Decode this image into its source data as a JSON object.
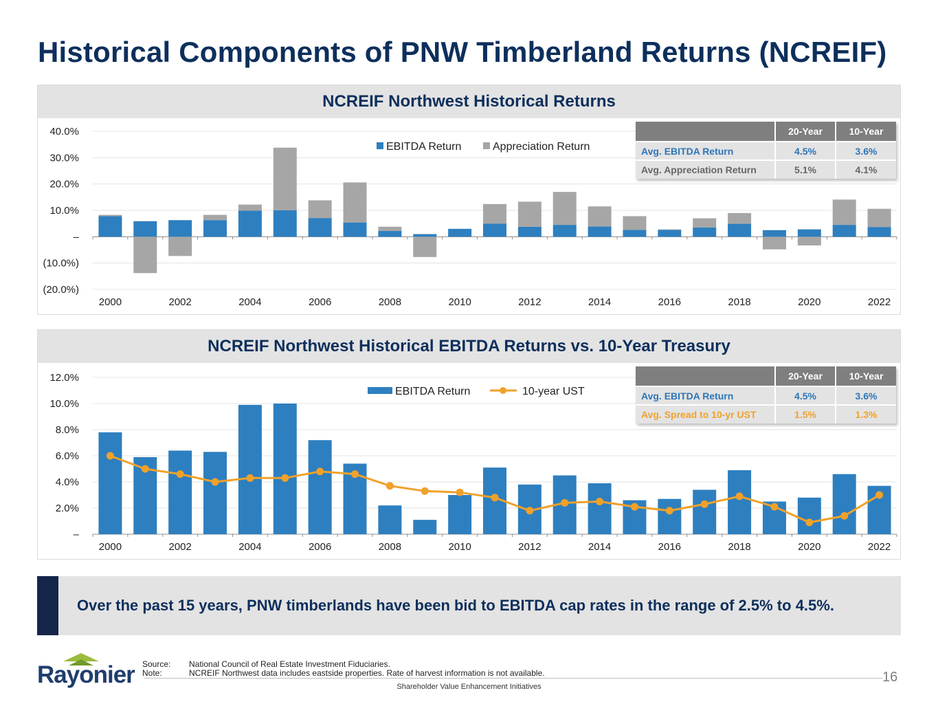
{
  "title": "Historical Components of PNW Timberland Returns (NCREIF)",
  "colors": {
    "navy": "#0d2f5c",
    "ebitda": "#2e7fbf",
    "appreciation": "#a6a6a6",
    "ust": "#f0a12a",
    "blue_text": "#2e75b6",
    "orange_text": "#f0a12a"
  },
  "panel1": {
    "title": "NCREIF Northwest Historical Returns",
    "table": {
      "headers": [
        "20-Year",
        "10-Year"
      ],
      "rows": [
        {
          "label": "Avg. EBITDA Return",
          "v20": "4.5%",
          "v10": "3.6%"
        },
        {
          "label": "Avg. Appreciation Return",
          "v20": "5.1%",
          "v10": "4.1%"
        }
      ]
    }
  },
  "panel2": {
    "title": "NCREIF Northwest Historical EBITDA Returns vs. 10-Year Treasury",
    "table": {
      "headers": [
        "20-Year",
        "10-Year"
      ],
      "rows": [
        {
          "label": "Avg. EBITDA Return",
          "v20": "4.5%",
          "v10": "3.6%"
        },
        {
          "label": "Avg. Spread to 10-yr UST",
          "v20": "1.5%",
          "v10": "1.3%"
        }
      ]
    }
  },
  "chart_data": [
    {
      "type": "bar",
      "stacked": true,
      "title": "NCREIF Northwest Historical Returns",
      "categories": [
        "2000",
        "2001",
        "2002",
        "2003",
        "2004",
        "2005",
        "2006",
        "2007",
        "2008",
        "2009",
        "2010",
        "2011",
        "2012",
        "2013",
        "2014",
        "2015",
        "2016",
        "2017",
        "2018",
        "2019",
        "2020",
        "2021",
        "2022"
      ],
      "x_tick_labels": [
        "2000",
        "2002",
        "2004",
        "2006",
        "2008",
        "2010",
        "2012",
        "2014",
        "2016",
        "2018",
        "2020",
        "2022"
      ],
      "y_tick_labels": [
        "40.0%",
        "30.0%",
        "20.0%",
        "10.0%",
        "–",
        "(10.0%)",
        "(20.0%)"
      ],
      "ylim": [
        -20,
        40
      ],
      "legend": "top-center",
      "series": [
        {
          "name": "EBITDA Return",
          "values": [
            7.8,
            5.9,
            6.3,
            6.3,
            9.9,
            10.0,
            7.1,
            5.4,
            2.2,
            1.0,
            3.0,
            5.0,
            3.8,
            4.5,
            3.9,
            2.6,
            2.6,
            3.5,
            4.9,
            2.5,
            2.8,
            4.5,
            3.7
          ]
        },
        {
          "name": "Appreciation Return",
          "values": [
            0.5,
            -13.8,
            -7.3,
            2.0,
            2.3,
            23.8,
            6.7,
            15.2,
            1.6,
            -7.7,
            0.0,
            7.4,
            9.5,
            12.5,
            7.6,
            5.2,
            0.2,
            3.5,
            4.1,
            -4.8,
            -3.3,
            9.6,
            6.9
          ]
        }
      ]
    },
    {
      "type": "bar",
      "title": "NCREIF Northwest Historical EBITDA Returns vs. 10-Year Treasury",
      "categories": [
        "2000",
        "2001",
        "2002",
        "2003",
        "2004",
        "2005",
        "2006",
        "2007",
        "2008",
        "2009",
        "2010",
        "2011",
        "2012",
        "2013",
        "2014",
        "2015",
        "2016",
        "2017",
        "2018",
        "2019",
        "2020",
        "2021",
        "2022"
      ],
      "x_tick_labels": [
        "2000",
        "2002",
        "2004",
        "2006",
        "2008",
        "2010",
        "2012",
        "2014",
        "2016",
        "2018",
        "2020",
        "2022"
      ],
      "y_tick_labels": [
        "12.0%",
        "10.0%",
        "8.0%",
        "6.0%",
        "4.0%",
        "2.0%",
        "–"
      ],
      "ylim": [
        0,
        12
      ],
      "legend": "top-center",
      "series": [
        {
          "name": "EBITDA Return",
          "type": "bar",
          "values": [
            7.8,
            5.9,
            6.4,
            6.3,
            9.9,
            10.0,
            7.2,
            5.4,
            2.2,
            1.1,
            3.0,
            5.1,
            3.8,
            4.5,
            3.9,
            2.6,
            2.7,
            3.4,
            4.9,
            2.5,
            2.8,
            4.6,
            3.7
          ]
        },
        {
          "name": "10-year UST",
          "type": "line",
          "values": [
            6.0,
            5.0,
            4.6,
            4.0,
            4.3,
            4.3,
            4.8,
            4.6,
            3.7,
            3.3,
            3.2,
            2.8,
            1.8,
            2.4,
            2.5,
            2.1,
            1.8,
            2.3,
            2.9,
            2.1,
            0.9,
            1.4,
            3.0
          ]
        }
      ]
    }
  ],
  "callout": "Over the past 15 years, PNW timberlands have been bid to EBITDA cap rates in the range of 2.5% to 4.5%.",
  "footer": {
    "logo": "Rayonier",
    "source_label": "Source:",
    "source_text": "National Council of Real Estate Investment Fiduciaries.",
    "note_label": "Note:",
    "note_text": "NCREIF Northwest data includes eastside properties. Rate of harvest information is not available.",
    "center": "Shareholder Value Enhancement Initiatives",
    "page": "16"
  }
}
